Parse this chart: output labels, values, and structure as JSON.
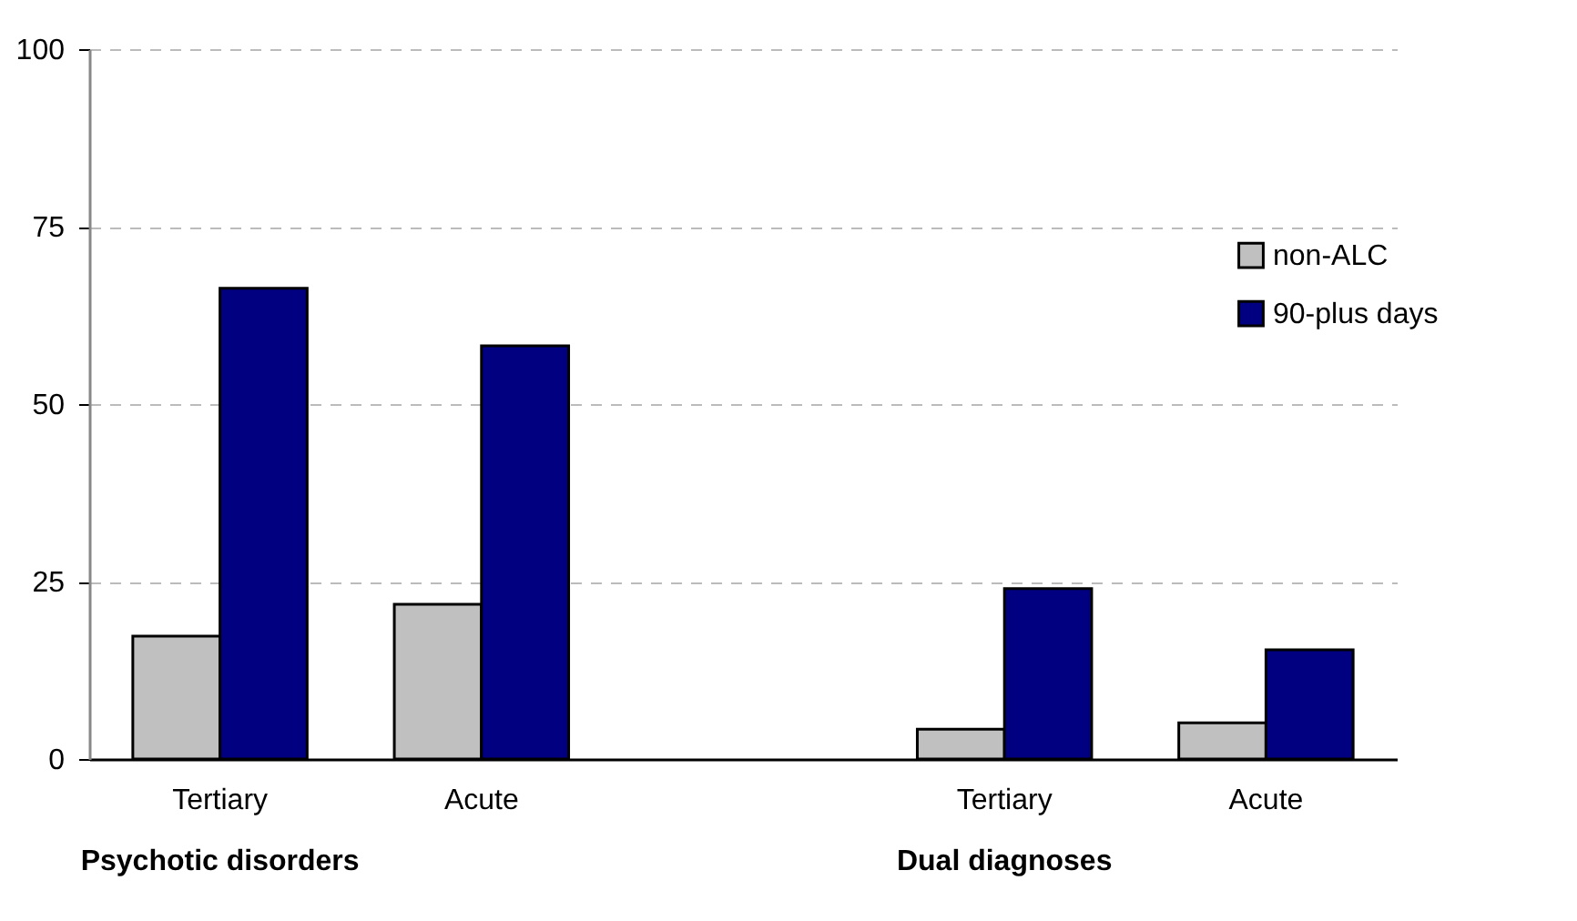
{
  "chart_data": {
    "type": "bar",
    "categories": [
      "Tertiary",
      "Acute",
      null,
      "Tertiary",
      "Acute"
    ],
    "series": [
      {
        "name": "non-ALC",
        "color": "#c0c0c0",
        "values": [
          17.3,
          21.8,
          null,
          4.2,
          5.1
        ]
      },
      {
        "name": "90-plus days",
        "color": "#000080",
        "values": [
          66.3,
          58.2,
          null,
          24.0,
          15.4
        ]
      }
    ],
    "ylim": [
      0,
      100
    ],
    "yticks": [
      0,
      25,
      50,
      75,
      100
    ],
    "grid": "y",
    "legend": "right",
    "annotations": [
      "Psychotic disorders",
      "Dual diagnoses"
    ]
  }
}
